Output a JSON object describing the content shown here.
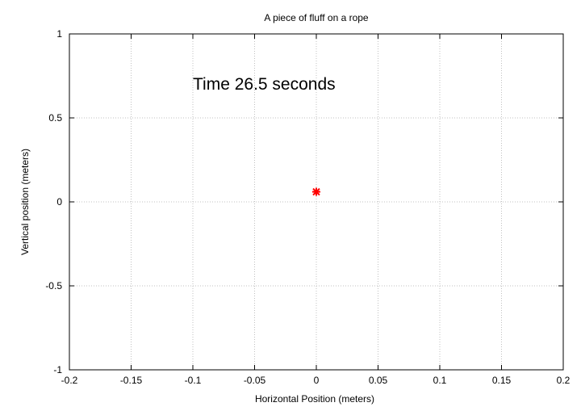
{
  "chart_data": {
    "type": "scatter",
    "title": "A piece of fluff on a rope",
    "xlabel": "Horizontal Position (meters)",
    "ylabel": "Vertical position (meters)",
    "xlim": [
      -0.2,
      0.2
    ],
    "ylim": [
      -1,
      1
    ],
    "xticks": [
      "-0.2",
      "-0.15",
      "-0.1",
      "-0.05",
      "0",
      "0.05",
      "0.1",
      "0.15",
      "0.2"
    ],
    "yticks": [
      "-1",
      "-0.5",
      "0",
      "0.5",
      "1"
    ],
    "grid": true,
    "annotation": "Time 26.5 seconds",
    "points": [
      {
        "x": 0.0,
        "y": 0.06
      }
    ],
    "marker_color": "#ff0000"
  }
}
